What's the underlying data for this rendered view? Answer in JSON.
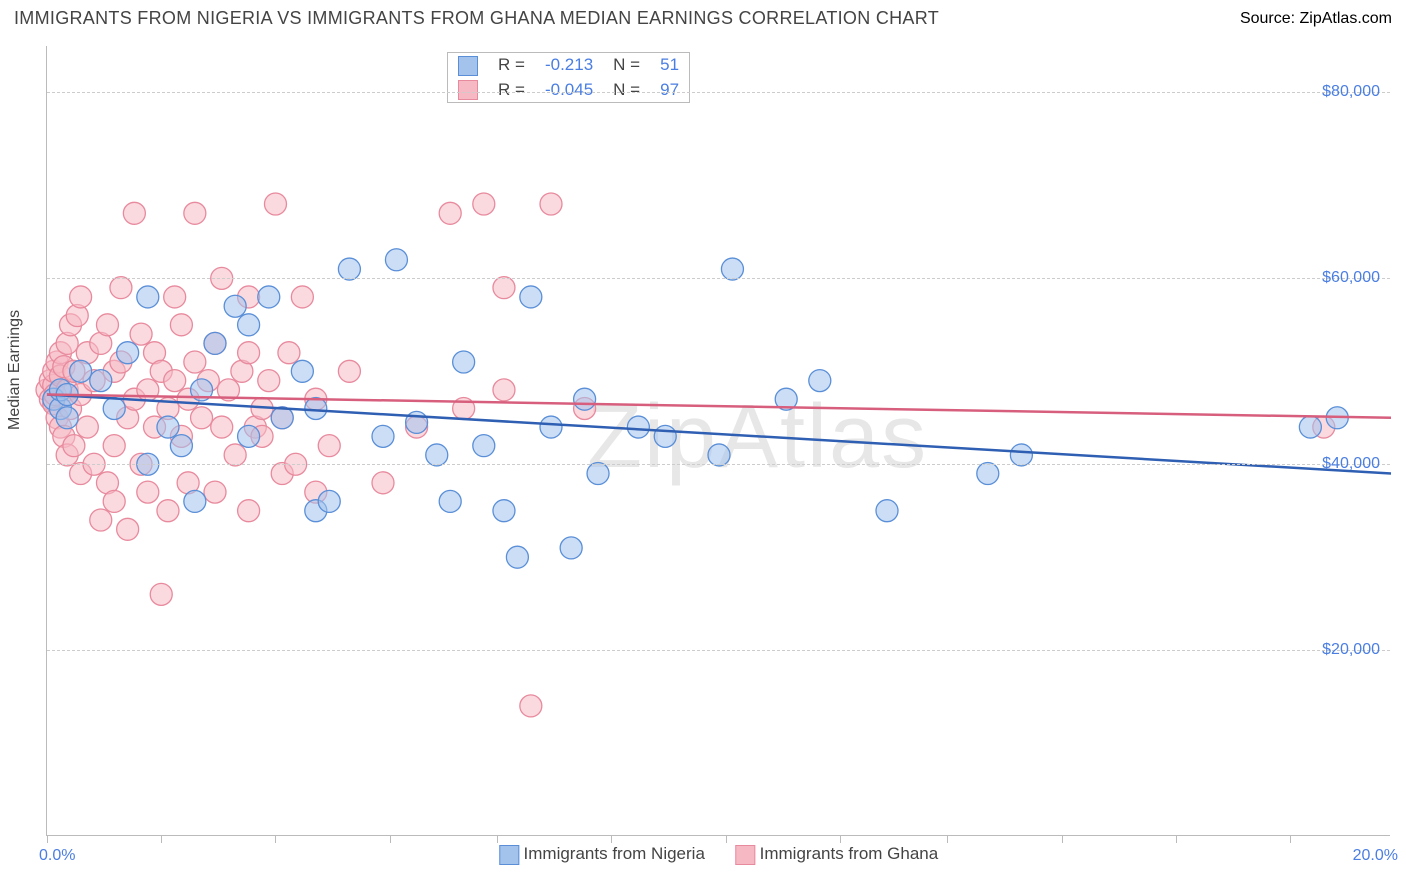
{
  "title": "IMMIGRANTS FROM NIGERIA VS IMMIGRANTS FROM GHANA MEDIAN EARNINGS CORRELATION CHART",
  "source_label": "Source:",
  "source_value": "ZipAtlas.com",
  "watermark": "ZipAtlas",
  "chart": {
    "type": "scatter",
    "ylabel": "Median Earnings",
    "xlim": [
      0,
      20
    ],
    "ylim": [
      0,
      85000
    ],
    "x_axis_left_label": "0.0%",
    "x_axis_right_label": "20.0%",
    "y_ticks": [
      20000,
      40000,
      60000,
      80000
    ],
    "y_tick_labels": [
      "$20,000",
      "$40,000",
      "$60,000",
      "$80,000"
    ],
    "x_ticks": [
      0,
      1.7,
      3.4,
      5.1,
      6.7,
      8.4,
      10.1,
      11.8,
      13.4,
      15.1,
      16.8,
      18.5
    ],
    "grid_color": "#cccccc",
    "axis_color": "#bbbbbb",
    "background_color": "#ffffff",
    "marker_radius": 11,
    "marker_opacity": 0.55,
    "series": [
      {
        "name": "Immigrants from Nigeria",
        "label": "Immigrants from Nigeria",
        "R": "-0.213",
        "N": "51",
        "fill_color": "#a3c3ec",
        "stroke_color": "#5a8fd8",
        "line_color": "#2f5fb3",
        "trend": {
          "y_at_xmin": 47500,
          "y_at_xmax": 39000
        },
        "points": [
          [
            0.1,
            47000
          ],
          [
            0.2,
            46000
          ],
          [
            0.2,
            48000
          ],
          [
            0.3,
            45000
          ],
          [
            0.3,
            47500
          ],
          [
            0.5,
            50000
          ],
          [
            0.8,
            49000
          ],
          [
            1.0,
            46000
          ],
          [
            1.2,
            52000
          ],
          [
            1.5,
            40000
          ],
          [
            1.5,
            58000
          ],
          [
            1.8,
            44000
          ],
          [
            2.0,
            42000
          ],
          [
            2.2,
            36000
          ],
          [
            2.3,
            48000
          ],
          [
            2.5,
            53000
          ],
          [
            2.8,
            57000
          ],
          [
            3.0,
            55000
          ],
          [
            3.0,
            43000
          ],
          [
            3.3,
            58000
          ],
          [
            3.5,
            45000
          ],
          [
            3.8,
            50000
          ],
          [
            4.0,
            46000
          ],
          [
            4.0,
            35000
          ],
          [
            4.2,
            36000
          ],
          [
            4.5,
            61000
          ],
          [
            5.0,
            43000
          ],
          [
            5.2,
            62000
          ],
          [
            5.5,
            44500
          ],
          [
            5.8,
            41000
          ],
          [
            6.0,
            36000
          ],
          [
            6.2,
            51000
          ],
          [
            6.5,
            42000
          ],
          [
            6.8,
            35000
          ],
          [
            7.0,
            30000
          ],
          [
            7.2,
            58000
          ],
          [
            7.5,
            44000
          ],
          [
            7.8,
            31000
          ],
          [
            8.0,
            47000
          ],
          [
            8.2,
            39000
          ],
          [
            8.8,
            44000
          ],
          [
            9.2,
            43000
          ],
          [
            10.0,
            41000
          ],
          [
            10.2,
            61000
          ],
          [
            11.0,
            47000
          ],
          [
            11.5,
            49000
          ],
          [
            12.5,
            35000
          ],
          [
            14.0,
            39000
          ],
          [
            14.5,
            41000
          ],
          [
            18.8,
            44000
          ],
          [
            19.2,
            45000
          ]
        ]
      },
      {
        "name": "Immigrants from Ghana",
        "label": "Immigrants from Ghana",
        "R": "-0.045",
        "N": "97",
        "fill_color": "#f6b9c4",
        "stroke_color": "#e88a9d",
        "line_color": "#d75f7d",
        "trend": {
          "y_at_xmin": 47500,
          "y_at_xmax": 45000
        },
        "points": [
          [
            0.0,
            48000
          ],
          [
            0.05,
            47000
          ],
          [
            0.05,
            49000
          ],
          [
            0.1,
            46500
          ],
          [
            0.1,
            48500
          ],
          [
            0.1,
            50000
          ],
          [
            0.12,
            47500
          ],
          [
            0.15,
            51000
          ],
          [
            0.15,
            45000
          ],
          [
            0.2,
            44000
          ],
          [
            0.2,
            49500
          ],
          [
            0.2,
            52000
          ],
          [
            0.25,
            43000
          ],
          [
            0.25,
            50500
          ],
          [
            0.3,
            53000
          ],
          [
            0.3,
            41000
          ],
          [
            0.3,
            48000
          ],
          [
            0.35,
            55000
          ],
          [
            0.35,
            46000
          ],
          [
            0.4,
            42000
          ],
          [
            0.4,
            50000
          ],
          [
            0.45,
            56000
          ],
          [
            0.5,
            39000
          ],
          [
            0.5,
            47500
          ],
          [
            0.5,
            58000
          ],
          [
            0.6,
            44000
          ],
          [
            0.6,
            52000
          ],
          [
            0.7,
            40000
          ],
          [
            0.7,
            49000
          ],
          [
            0.8,
            53000
          ],
          [
            0.8,
            34000
          ],
          [
            0.9,
            55000
          ],
          [
            0.9,
            38000
          ],
          [
            1.0,
            50000
          ],
          [
            1.0,
            42000
          ],
          [
            1.0,
            36000
          ],
          [
            1.1,
            51000
          ],
          [
            1.1,
            59000
          ],
          [
            1.2,
            45000
          ],
          [
            1.2,
            33000
          ],
          [
            1.3,
            47000
          ],
          [
            1.3,
            67000
          ],
          [
            1.4,
            54000
          ],
          [
            1.4,
            40000
          ],
          [
            1.5,
            48000
          ],
          [
            1.5,
            37000
          ],
          [
            1.6,
            52000
          ],
          [
            1.6,
            44000
          ],
          [
            1.7,
            26000
          ],
          [
            1.7,
            50000
          ],
          [
            1.8,
            46000
          ],
          [
            1.8,
            35000
          ],
          [
            1.9,
            49000
          ],
          [
            1.9,
            58000
          ],
          [
            2.0,
            43000
          ],
          [
            2.0,
            55000
          ],
          [
            2.1,
            47000
          ],
          [
            2.1,
            38000
          ],
          [
            2.2,
            51000
          ],
          [
            2.2,
            67000
          ],
          [
            2.3,
            45000
          ],
          [
            2.4,
            49000
          ],
          [
            2.5,
            37000
          ],
          [
            2.5,
            53000
          ],
          [
            2.6,
            44000
          ],
          [
            2.6,
            60000
          ],
          [
            2.7,
            48000
          ],
          [
            2.8,
            41000
          ],
          [
            2.9,
            50000
          ],
          [
            3.0,
            35000
          ],
          [
            3.0,
            52000
          ],
          [
            3.0,
            58000
          ],
          [
            3.1,
            44000
          ],
          [
            3.2,
            46000
          ],
          [
            3.2,
            43000
          ],
          [
            3.3,
            49000
          ],
          [
            3.4,
            68000
          ],
          [
            3.5,
            45000
          ],
          [
            3.5,
            39000
          ],
          [
            3.6,
            52000
          ],
          [
            3.7,
            40000
          ],
          [
            3.8,
            58000
          ],
          [
            4.0,
            47000
          ],
          [
            4.0,
            37000
          ],
          [
            4.2,
            42000
          ],
          [
            4.5,
            50000
          ],
          [
            5.0,
            38000
          ],
          [
            5.5,
            44000
          ],
          [
            6.0,
            67000
          ],
          [
            6.2,
            46000
          ],
          [
            6.5,
            68000
          ],
          [
            6.8,
            48000
          ],
          [
            6.8,
            59000
          ],
          [
            7.2,
            14000
          ],
          [
            7.5,
            68000
          ],
          [
            8.0,
            46000
          ],
          [
            19.0,
            44000
          ]
        ]
      }
    ],
    "stats_legend_labels": {
      "R": "R",
      "N": "N",
      "equals": "="
    },
    "legend_position": "top-center",
    "title_fontsize": 18,
    "label_fontsize": 16,
    "tick_label_color": "#4a7ee2"
  }
}
